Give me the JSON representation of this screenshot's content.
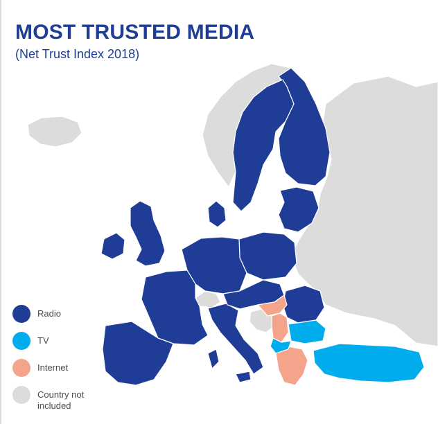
{
  "header": {
    "title": "MOST TRUSTED MEDIA",
    "subtitle": "(Net Trust Index 2018)"
  },
  "colors": {
    "radio": "#1f3d96",
    "tv": "#00acec",
    "internet": "#f5a48c",
    "not_included": "#dcdcdc",
    "border": "#ffffff"
  },
  "legend": {
    "radio_label": "Radio",
    "tv_label": "TV",
    "internet_label": "Internet",
    "not_included_label": "Country not included"
  }
}
